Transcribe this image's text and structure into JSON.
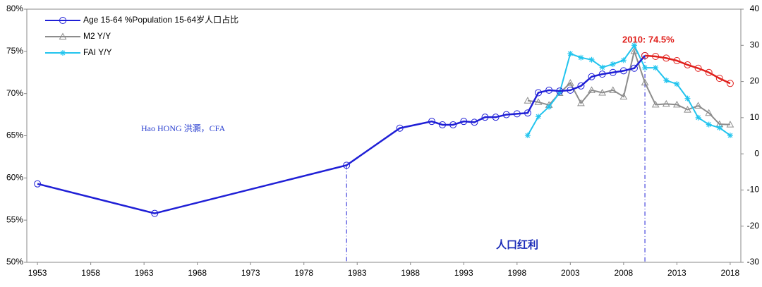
{
  "chart_data": {
    "type": "line",
    "xlim": [
      1952,
      2019
    ],
    "xticks": [
      1953,
      1958,
      1963,
      1968,
      1973,
      1978,
      1983,
      1988,
      1993,
      1998,
      2003,
      2008,
      2013,
      2018
    ],
    "ylim": [
      50,
      80
    ],
    "yticks": [
      {
        "value": 50,
        "label": "50%"
      },
      {
        "value": 55,
        "label": "55%"
      },
      {
        "value": 60,
        "label": "60%"
      },
      {
        "value": 65,
        "label": "65%"
      },
      {
        "value": 70,
        "label": "70%"
      },
      {
        "value": 75,
        "label": "75%"
      },
      {
        "value": 80,
        "label": "80%"
      }
    ],
    "y2lim": [
      -30,
      40
    ],
    "y2ticks": [
      -30,
      -20,
      -10,
      0,
      10,
      20,
      30,
      40
    ],
    "series": [
      {
        "name": "Age 15-64 %Population 15-64岁人口占比",
        "color": "#1f1fd6",
        "marker": "circle",
        "x": [
          1953,
          1964,
          1982,
          1987,
          1990,
          1991,
          1992,
          1993,
          1994,
          1995,
          1996,
          1997,
          1998,
          1999,
          2000,
          2001,
          2002,
          2003,
          2004,
          2005,
          2006,
          2007,
          2008,
          2009,
          2010
        ],
        "values": [
          59.3,
          55.8,
          61.5,
          65.9,
          66.7,
          66.3,
          66.3,
          66.7,
          66.6,
          67.2,
          67.2,
          67.5,
          67.6,
          67.7,
          70.1,
          70.4,
          70.3,
          70.4,
          70.9,
          72.0,
          72.3,
          72.5,
          72.7,
          73.0,
          74.5
        ]
      },
      {
        "color": "#e0201c",
        "marker": "circle",
        "x": [
          2010,
          2011,
          2012,
          2013,
          2014,
          2015,
          2016,
          2017,
          2018
        ],
        "values": [
          74.5,
          74.4,
          74.2,
          73.9,
          73.4,
          73.0,
          72.5,
          71.8,
          71.2
        ]
      },
      {
        "name": "M2 Y/Y",
        "color": "#8c8c8c",
        "marker": "triangle",
        "axis": "y2",
        "x": [
          1999,
          2000,
          2001,
          2002,
          2003,
          2004,
          2005,
          2006,
          2007,
          2008,
          2009,
          2010,
          2011,
          2012,
          2013,
          2014,
          2015,
          2016,
          2017,
          2018
        ],
        "values": [
          14.7,
          14.3,
          13.5,
          16.8,
          19.6,
          14.0,
          17.6,
          16.9,
          17.6,
          15.8,
          28.4,
          19.7,
          13.6,
          13.8,
          13.6,
          12.2,
          13.3,
          11.3,
          8.2,
          8.1
        ]
      },
      {
        "name": "FAI Y/Y",
        "color": "#21c4ee",
        "marker": "star",
        "axis": "y2",
        "x": [
          1999,
          2000,
          2001,
          2002,
          2003,
          2004,
          2005,
          2006,
          2007,
          2008,
          2009,
          2010,
          2011,
          2012,
          2013,
          2014,
          2015,
          2016,
          2017,
          2018
        ],
        "values": [
          5.1,
          10.3,
          13.0,
          16.9,
          27.7,
          26.6,
          26.0,
          23.9,
          24.8,
          25.9,
          30.0,
          23.8,
          23.8,
          20.3,
          19.3,
          15.3,
          10.0,
          8.1,
          7.2,
          5.1
        ]
      }
    ],
    "annotations": [
      {
        "text": "2010: 74.5%"
      },
      {
        "text": "Hao HONG 洪灝，CFA"
      },
      {
        "text": "人口红利"
      }
    ]
  }
}
